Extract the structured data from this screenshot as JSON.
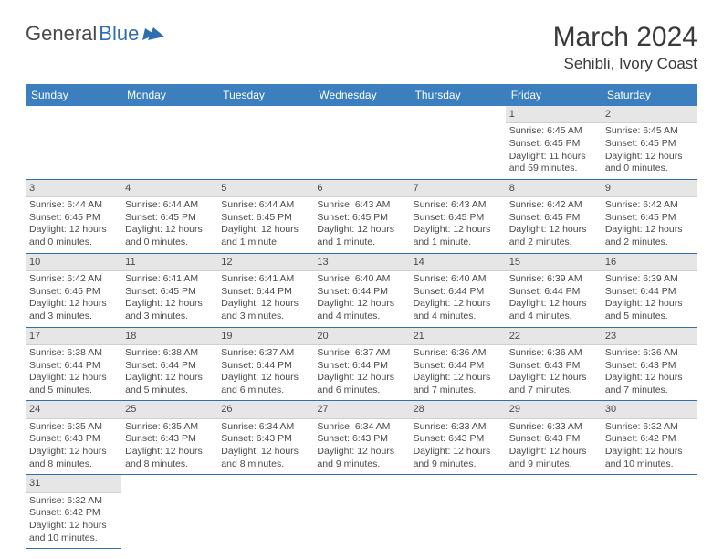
{
  "brand": {
    "part1": "General",
    "part2": "Blue"
  },
  "title": "March 2024",
  "location": "Sehibli, Ivory Coast",
  "colors": {
    "header_bg": "#3b7fbf",
    "header_text": "#ffffff",
    "daynum_bg": "#e6e6e6",
    "border": "#2f6fae",
    "text": "#4a4a4a",
    "brand_blue": "#2f6fae"
  },
  "day_headers": [
    "Sunday",
    "Monday",
    "Tuesday",
    "Wednesday",
    "Thursday",
    "Friday",
    "Saturday"
  ],
  "weeks": [
    [
      null,
      null,
      null,
      null,
      null,
      {
        "n": "1",
        "sunrise": "Sunrise: 6:45 AM",
        "sunset": "Sunset: 6:45 PM",
        "daylight": "Daylight: 11 hours and 59 minutes."
      },
      {
        "n": "2",
        "sunrise": "Sunrise: 6:45 AM",
        "sunset": "Sunset: 6:45 PM",
        "daylight": "Daylight: 12 hours and 0 minutes."
      }
    ],
    [
      {
        "n": "3",
        "sunrise": "Sunrise: 6:44 AM",
        "sunset": "Sunset: 6:45 PM",
        "daylight": "Daylight: 12 hours and 0 minutes."
      },
      {
        "n": "4",
        "sunrise": "Sunrise: 6:44 AM",
        "sunset": "Sunset: 6:45 PM",
        "daylight": "Daylight: 12 hours and 0 minutes."
      },
      {
        "n": "5",
        "sunrise": "Sunrise: 6:44 AM",
        "sunset": "Sunset: 6:45 PM",
        "daylight": "Daylight: 12 hours and 1 minute."
      },
      {
        "n": "6",
        "sunrise": "Sunrise: 6:43 AM",
        "sunset": "Sunset: 6:45 PM",
        "daylight": "Daylight: 12 hours and 1 minute."
      },
      {
        "n": "7",
        "sunrise": "Sunrise: 6:43 AM",
        "sunset": "Sunset: 6:45 PM",
        "daylight": "Daylight: 12 hours and 1 minute."
      },
      {
        "n": "8",
        "sunrise": "Sunrise: 6:42 AM",
        "sunset": "Sunset: 6:45 PM",
        "daylight": "Daylight: 12 hours and 2 minutes."
      },
      {
        "n": "9",
        "sunrise": "Sunrise: 6:42 AM",
        "sunset": "Sunset: 6:45 PM",
        "daylight": "Daylight: 12 hours and 2 minutes."
      }
    ],
    [
      {
        "n": "10",
        "sunrise": "Sunrise: 6:42 AM",
        "sunset": "Sunset: 6:45 PM",
        "daylight": "Daylight: 12 hours and 3 minutes."
      },
      {
        "n": "11",
        "sunrise": "Sunrise: 6:41 AM",
        "sunset": "Sunset: 6:45 PM",
        "daylight": "Daylight: 12 hours and 3 minutes."
      },
      {
        "n": "12",
        "sunrise": "Sunrise: 6:41 AM",
        "sunset": "Sunset: 6:44 PM",
        "daylight": "Daylight: 12 hours and 3 minutes."
      },
      {
        "n": "13",
        "sunrise": "Sunrise: 6:40 AM",
        "sunset": "Sunset: 6:44 PM",
        "daylight": "Daylight: 12 hours and 4 minutes."
      },
      {
        "n": "14",
        "sunrise": "Sunrise: 6:40 AM",
        "sunset": "Sunset: 6:44 PM",
        "daylight": "Daylight: 12 hours and 4 minutes."
      },
      {
        "n": "15",
        "sunrise": "Sunrise: 6:39 AM",
        "sunset": "Sunset: 6:44 PM",
        "daylight": "Daylight: 12 hours and 4 minutes."
      },
      {
        "n": "16",
        "sunrise": "Sunrise: 6:39 AM",
        "sunset": "Sunset: 6:44 PM",
        "daylight": "Daylight: 12 hours and 5 minutes."
      }
    ],
    [
      {
        "n": "17",
        "sunrise": "Sunrise: 6:38 AM",
        "sunset": "Sunset: 6:44 PM",
        "daylight": "Daylight: 12 hours and 5 minutes."
      },
      {
        "n": "18",
        "sunrise": "Sunrise: 6:38 AM",
        "sunset": "Sunset: 6:44 PM",
        "daylight": "Daylight: 12 hours and 5 minutes."
      },
      {
        "n": "19",
        "sunrise": "Sunrise: 6:37 AM",
        "sunset": "Sunset: 6:44 PM",
        "daylight": "Daylight: 12 hours and 6 minutes."
      },
      {
        "n": "20",
        "sunrise": "Sunrise: 6:37 AM",
        "sunset": "Sunset: 6:44 PM",
        "daylight": "Daylight: 12 hours and 6 minutes."
      },
      {
        "n": "21",
        "sunrise": "Sunrise: 6:36 AM",
        "sunset": "Sunset: 6:44 PM",
        "daylight": "Daylight: 12 hours and 7 minutes."
      },
      {
        "n": "22",
        "sunrise": "Sunrise: 6:36 AM",
        "sunset": "Sunset: 6:43 PM",
        "daylight": "Daylight: 12 hours and 7 minutes."
      },
      {
        "n": "23",
        "sunrise": "Sunrise: 6:36 AM",
        "sunset": "Sunset: 6:43 PM",
        "daylight": "Daylight: 12 hours and 7 minutes."
      }
    ],
    [
      {
        "n": "24",
        "sunrise": "Sunrise: 6:35 AM",
        "sunset": "Sunset: 6:43 PM",
        "daylight": "Daylight: 12 hours and 8 minutes."
      },
      {
        "n": "25",
        "sunrise": "Sunrise: 6:35 AM",
        "sunset": "Sunset: 6:43 PM",
        "daylight": "Daylight: 12 hours and 8 minutes."
      },
      {
        "n": "26",
        "sunrise": "Sunrise: 6:34 AM",
        "sunset": "Sunset: 6:43 PM",
        "daylight": "Daylight: 12 hours and 8 minutes."
      },
      {
        "n": "27",
        "sunrise": "Sunrise: 6:34 AM",
        "sunset": "Sunset: 6:43 PM",
        "daylight": "Daylight: 12 hours and 9 minutes."
      },
      {
        "n": "28",
        "sunrise": "Sunrise: 6:33 AM",
        "sunset": "Sunset: 6:43 PM",
        "daylight": "Daylight: 12 hours and 9 minutes."
      },
      {
        "n": "29",
        "sunrise": "Sunrise: 6:33 AM",
        "sunset": "Sunset: 6:43 PM",
        "daylight": "Daylight: 12 hours and 9 minutes."
      },
      {
        "n": "30",
        "sunrise": "Sunrise: 6:32 AM",
        "sunset": "Sunset: 6:42 PM",
        "daylight": "Daylight: 12 hours and 10 minutes."
      }
    ],
    [
      {
        "n": "31",
        "sunrise": "Sunrise: 6:32 AM",
        "sunset": "Sunset: 6:42 PM",
        "daylight": "Daylight: 12 hours and 10 minutes."
      },
      null,
      null,
      null,
      null,
      null,
      null
    ]
  ]
}
